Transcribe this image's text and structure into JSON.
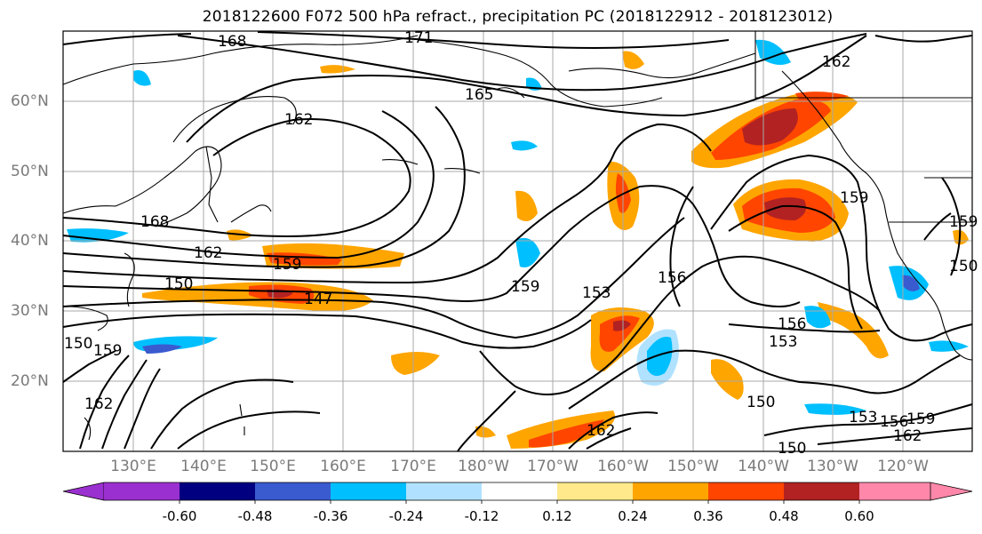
{
  "title": "2018122600 F072 500 hPa refract., precipitation PC (2018122912 - 2018123012)",
  "map": {
    "lat_labels": [
      "60°N",
      "50°N",
      "40°N",
      "30°N",
      "20°N"
    ],
    "lon_labels": [
      "130°E",
      "140°E",
      "150°E",
      "160°E",
      "170°E",
      "180°W",
      "170°W",
      "160°W",
      "150°W",
      "140°W",
      "130°W",
      "120°W"
    ],
    "contour_labels": [
      "171",
      "168",
      "165",
      "162",
      "168",
      "162",
      "159",
      "150",
      "147",
      "159",
      "153",
      "156",
      "156",
      "153",
      "150",
      "150",
      "153",
      "156",
      "159",
      "162",
      "162",
      "159",
      "159",
      "150",
      "159",
      "162",
      "162",
      "150"
    ]
  },
  "colorbar": {
    "colors": [
      "#9b30d0",
      "#000080",
      "#3a5bd0",
      "#00bfff",
      "#b0e2ff",
      "#ffffff",
      "#ffe98a",
      "#ffa500",
      "#ff4500",
      "#b22222",
      "#ff88aa"
    ],
    "tick_labels": [
      "-0.60",
      "-0.48",
      "-0.36",
      "-0.24",
      "-0.12",
      "0.12",
      "0.24",
      "0.36",
      "0.48",
      "0.60"
    ]
  }
}
